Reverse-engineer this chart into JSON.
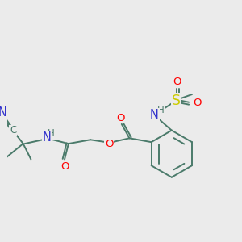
{
  "bg_color": "#ebebeb",
  "bond_color": "#4a7a6a",
  "bond_lw": 1.4,
  "atom_colors": {
    "N": "#3333cc",
    "O": "#ff0000",
    "S": "#cccc00",
    "H": "#4a7a6a",
    "C": "#4a7a6a"
  },
  "font_size": 9.5,
  "figsize": [
    3.0,
    3.0
  ],
  "dpi": 100
}
